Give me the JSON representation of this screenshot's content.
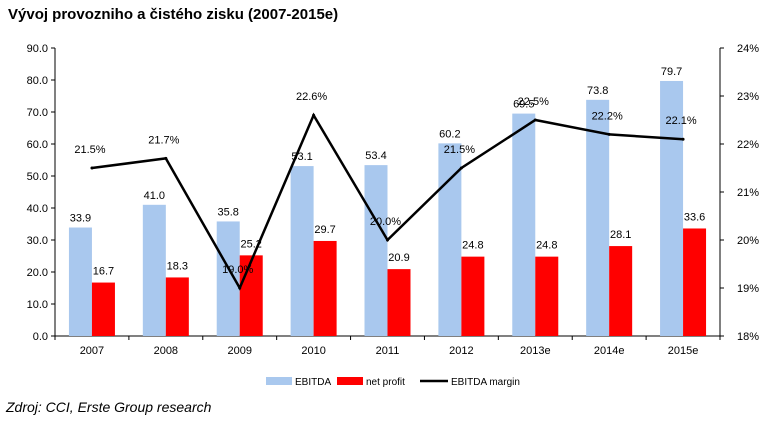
{
  "title": "Vývoj provozniho a čistého zisku (2007-2015e)",
  "source": "Zdroj: CCI, Erste Group research",
  "colors": {
    "ebitda": "#a9c8ee",
    "net_profit": "#ff0000",
    "margin": "#000000",
    "axis": "#000000"
  },
  "chart_data": {
    "type": "bar",
    "categories": [
      "2007",
      "2008",
      "2009",
      "2010",
      "2011",
      "2012",
      "2013e",
      "2014e",
      "2015e"
    ],
    "series": [
      {
        "name": "EBITDA",
        "type": "bar",
        "axis": "left",
        "values": [
          33.9,
          41.0,
          35.8,
          53.1,
          53.4,
          60.2,
          69.5,
          73.8,
          79.7
        ],
        "labels": [
          "33.9",
          "41.0",
          "35.8",
          "53.1",
          "53.4",
          "60.2",
          "69.5",
          "73.8",
          "79.7"
        ]
      },
      {
        "name": "net profit",
        "type": "bar",
        "axis": "left",
        "values": [
          16.7,
          18.3,
          25.2,
          29.7,
          20.9,
          24.8,
          24.8,
          28.1,
          33.6
        ],
        "labels": [
          "16.7",
          "18.3",
          "25.2",
          "29.7",
          "20.9",
          "24.8",
          "24.8",
          "28.1",
          "33.6"
        ]
      },
      {
        "name": "EBITDA margin",
        "type": "line",
        "axis": "right",
        "values": [
          21.5,
          21.7,
          19.0,
          22.6,
          20.0,
          21.5,
          22.5,
          22.2,
          22.1
        ],
        "labels": [
          "21.5%",
          "21.7%",
          "19.0%",
          "22.6%",
          "20.0%",
          "21.5%",
          "22.5%",
          "22.2%",
          "22.1%"
        ]
      }
    ],
    "y_left": {
      "ylim": [
        0,
        90
      ],
      "ticks": [
        0,
        10,
        20,
        30,
        40,
        50,
        60,
        70,
        80,
        90
      ],
      "tick_labels": [
        "0.0",
        "10.0",
        "20.0",
        "30.0",
        "40.0",
        "50.0",
        "60.0",
        "70.0",
        "80.0",
        "90.0"
      ]
    },
    "y_right": {
      "ylim": [
        18,
        24
      ],
      "ticks": [
        18,
        19,
        20,
        21,
        22,
        23,
        24
      ],
      "tick_labels": [
        "18%",
        "19%",
        "20%",
        "21%",
        "22%",
        "23%",
        "24%"
      ]
    },
    "grid": false,
    "legend": "bottom",
    "legend_entries": [
      "EBITDA",
      "net profit",
      "EBITDA margin"
    ]
  }
}
